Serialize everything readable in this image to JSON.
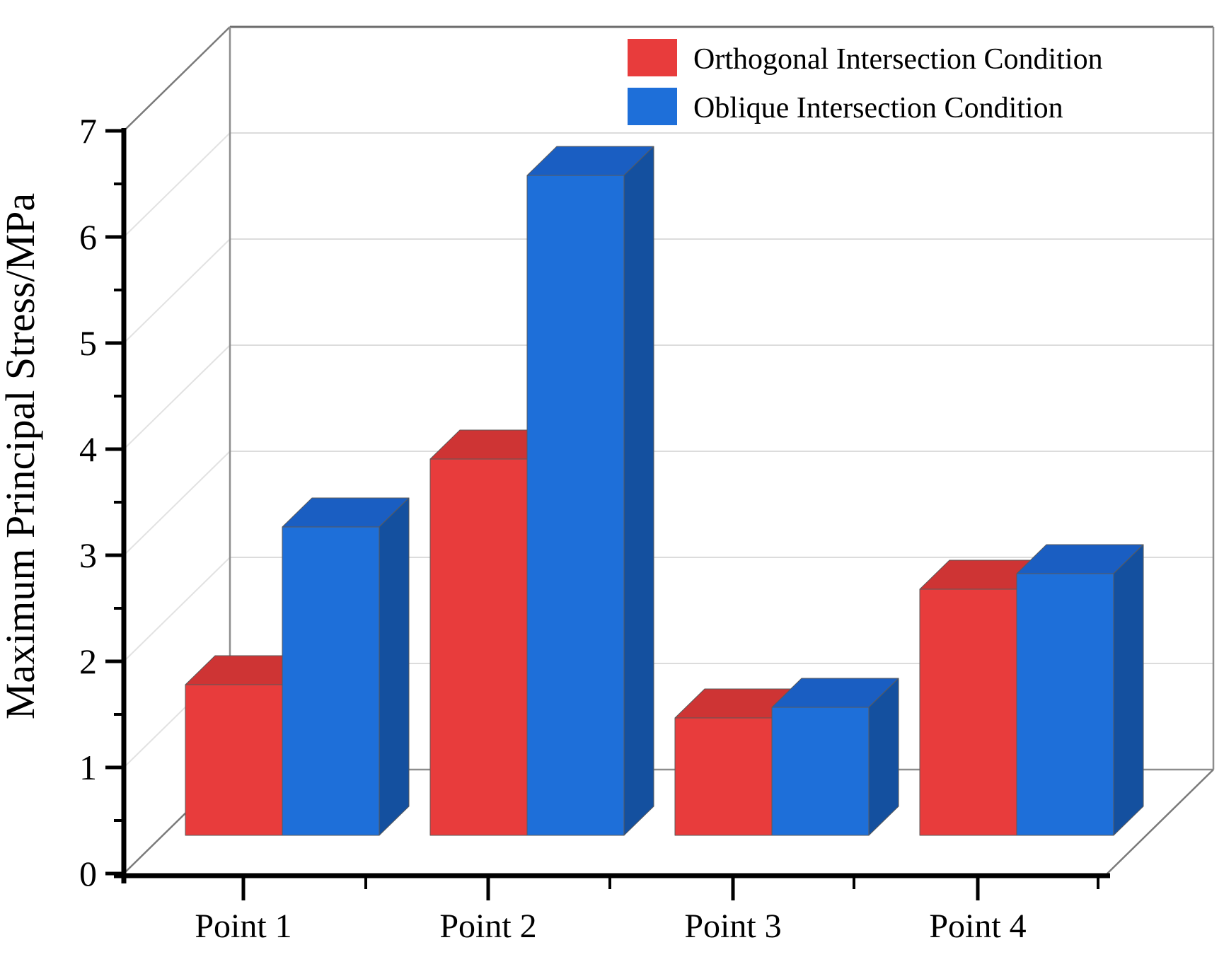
{
  "chart_data": {
    "type": "bar",
    "projection": "3d-oblique",
    "title": "",
    "xlabel": "",
    "ylabel": "Maximum Principal Stress/MPa",
    "categories": [
      "Point 1",
      "Point 2",
      "Point 3",
      "Point 4"
    ],
    "series": [
      {
        "key": "orthogonal",
        "name": "Orthogonal Intersection Condition",
        "color": "#E83C3C",
        "color_top": "#CE3434",
        "color_side": "#A82A2A",
        "values": [
          1.42,
          3.55,
          1.11,
          2.32
        ]
      },
      {
        "key": "oblique",
        "name": "Oblique Intersection Condition",
        "color": "#1E6FD9",
        "color_top": "#1A5EC2",
        "color_side": "#14509F",
        "values": [
          2.91,
          6.22,
          1.21,
          2.47
        ]
      }
    ],
    "ylim": [
      0,
      7
    ],
    "ytick_step": 1,
    "ytick_minor_step": 0.5,
    "ytick_labels": [
      "0",
      "1",
      "2",
      "3",
      "4",
      "5",
      "6",
      "7"
    ],
    "grid": "horizontal-back-wall-only",
    "legend_position": "top-right",
    "frame_color": "#7a7a7a",
    "gridline_color": "#dcdcdc",
    "axis_color": "#000000"
  }
}
